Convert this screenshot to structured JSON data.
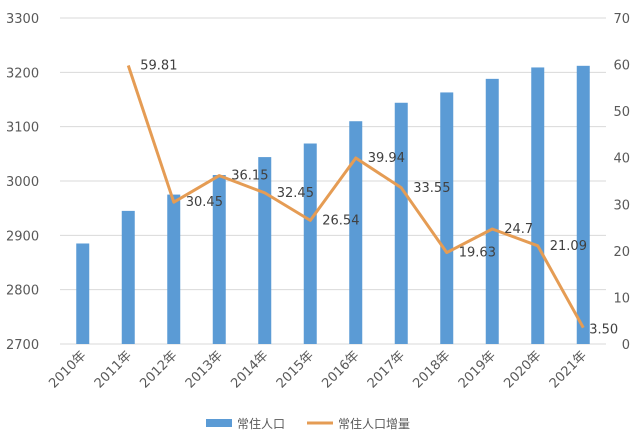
{
  "chart_data": {
    "type": "bar+line",
    "categories": [
      "2010年",
      "2011年",
      "2012年",
      "2013年",
      "2014年",
      "2015年",
      "2016年",
      "2017年",
      "2018年",
      "2019年",
      "2020年",
      "2021年"
    ],
    "series": [
      {
        "name": "常住人口",
        "type": "bar",
        "axis": "left",
        "color": "#5b9bd5",
        "values": [
          2885,
          2945,
          2975,
          3011,
          3044,
          3069,
          3110,
          3144,
          3163,
          3188,
          3209,
          3212
        ]
      },
      {
        "name": "常住人口增量",
        "type": "line",
        "axis": "right",
        "color": "#e59c54",
        "values": [
          null,
          59.81,
          30.45,
          36.15,
          32.45,
          26.54,
          39.94,
          33.55,
          19.63,
          24.7,
          21.09,
          3.5
        ],
        "labels": [
          "",
          "59.81",
          "30.45",
          "36.15",
          "32.45",
          "26.54",
          "39.94",
          "33.55",
          "19.63",
          "24.7",
          "21.09",
          "3.50"
        ]
      }
    ],
    "y_left": {
      "min": 2700,
      "max": 3300,
      "ticks": [
        2700,
        2800,
        2900,
        3000,
        3100,
        3200,
        3300
      ]
    },
    "y_right": {
      "min": 0,
      "max": 70,
      "ticks": [
        0,
        10,
        20,
        30,
        40,
        50,
        60,
        70
      ]
    },
    "grid": true,
    "legend_position": "bottom",
    "title": "",
    "xlabel": "",
    "ylabel": ""
  }
}
